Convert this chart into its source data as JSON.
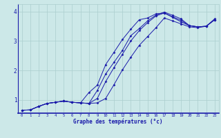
{
  "xlabel": "Graphe des températures (°c)",
  "bg_color": "#cce8e8",
  "grid_color": "#aacece",
  "line_color": "#1a1aaa",
  "xlim": [
    -0.5,
    23.5
  ],
  "ylim": [
    0.55,
    4.25
  ],
  "xticks": [
    0,
    1,
    2,
    3,
    4,
    5,
    6,
    7,
    8,
    9,
    10,
    11,
    12,
    13,
    14,
    15,
    16,
    17,
    18,
    19,
    20,
    21,
    22,
    23
  ],
  "yticks": [
    1,
    2,
    3,
    4
  ],
  "line1_x": [
    0,
    1,
    2,
    3,
    4,
    5,
    6,
    7,
    8,
    9,
    10,
    11,
    12,
    13,
    14,
    15,
    16,
    17,
    18,
    19,
    20,
    21,
    22,
    23
  ],
  "line1_y": [
    0.65,
    0.66,
    0.78,
    0.88,
    0.92,
    0.96,
    0.92,
    0.9,
    0.88,
    0.9,
    1.05,
    1.52,
    2.02,
    2.45,
    2.85,
    3.15,
    3.45,
    3.78,
    3.68,
    3.58,
    3.48,
    3.45,
    3.5,
    3.72
  ],
  "line2_x": [
    0,
    1,
    2,
    3,
    4,
    5,
    6,
    7,
    8,
    9,
    10,
    11,
    12,
    13,
    14,
    15,
    16,
    17,
    18,
    19,
    20,
    21,
    22,
    23
  ],
  "line2_y": [
    0.65,
    0.66,
    0.78,
    0.88,
    0.92,
    0.96,
    0.92,
    0.9,
    0.88,
    1.05,
    1.62,
    2.1,
    2.55,
    3.0,
    3.35,
    3.62,
    3.85,
    3.95,
    3.82,
    3.7,
    3.52,
    3.48,
    3.5,
    3.72
  ],
  "line3_x": [
    0,
    1,
    2,
    3,
    4,
    5,
    6,
    7,
    8,
    9,
    10,
    11,
    12,
    13,
    14,
    15,
    16,
    17,
    18,
    19,
    20,
    21,
    22,
    23
  ],
  "line3_y": [
    0.65,
    0.66,
    0.78,
    0.88,
    0.92,
    0.96,
    0.92,
    0.9,
    1.25,
    1.5,
    2.2,
    2.62,
    3.05,
    3.4,
    3.72,
    3.78,
    3.92,
    3.95,
    3.8,
    3.65,
    3.52,
    3.48,
    3.5,
    3.72
  ],
  "line4_x": [
    0,
    1,
    2,
    3,
    4,
    5,
    6,
    7,
    8,
    9,
    10,
    11,
    12,
    13,
    14,
    15,
    16,
    17,
    18,
    19,
    20,
    21,
    22,
    23
  ],
  "line4_y": [
    0.65,
    0.66,
    0.78,
    0.88,
    0.92,
    0.96,
    0.92,
    0.9,
    0.88,
    1.32,
    1.88,
    2.28,
    2.68,
    3.18,
    3.42,
    3.68,
    3.88,
    3.98,
    3.87,
    3.75,
    3.52,
    3.48,
    3.5,
    3.75
  ]
}
